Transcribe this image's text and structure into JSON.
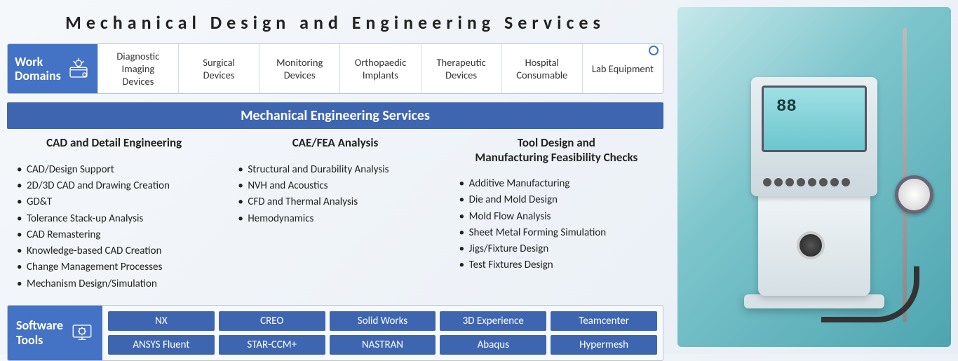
{
  "title": "Mechanical Design and Engineering Services",
  "colors": {
    "accent": "#4472c4",
    "accent_dark": "#3e66b0",
    "border": "#b8c5d6",
    "text": "#222222",
    "bg": "#f5f8fb"
  },
  "domains": {
    "label_line1": "Work",
    "label_line2": "Domains",
    "items": [
      "Diagnostic Imaging Devices",
      "Surgical Devices",
      "Monitoring Devices",
      "Orthopaedic Implants",
      "Therapeutic Devices",
      "Hospital Consumable",
      "Lab Equipment"
    ]
  },
  "services_bar": "Mechanical Engineering Services",
  "columns": [
    {
      "heading": "CAD and Detail Engineering",
      "items": [
        "CAD/Design Support",
        "2D/3D CAD and Drawing Creation",
        "GD&T",
        "Tolerance Stack-up Analysis",
        "CAD Remastering",
        "Knowledge-based CAD Creation",
        "Change Management Processes",
        "Mechanism Design/Simulation"
      ]
    },
    {
      "heading": "CAE/FEA Analysis",
      "items": [
        "Structural and Durability Analysis",
        "NVH and Acoustics",
        "CFD and Thermal Analysis",
        "Hemodynamics"
      ]
    },
    {
      "heading": "Tool Design and\nManufacturing Feasibility Checks",
      "items": [
        "Additive Manufacturing",
        "Die  and Mold Design",
        "Mold Flow Analysis",
        "Sheet Metal Forming Simulation",
        "Jigs/Fixture Design",
        "Test Fixtures Design"
      ]
    }
  ],
  "tools": {
    "label_line1": "Software",
    "label_line2": "Tools",
    "items": [
      "NX",
      "CREO",
      "Solid Works",
      "3D Experience",
      "Teamcenter",
      "ANSYS Fluent",
      "STAR-CCM+",
      "NASTRAN",
      "Abaqus",
      "Hypermesh"
    ]
  }
}
